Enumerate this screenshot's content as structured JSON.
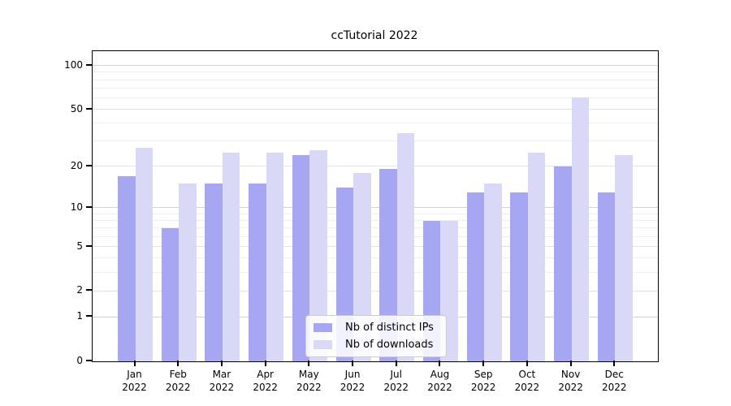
{
  "chart_data": {
    "type": "bar",
    "title": "ccTutorial 2022",
    "categories": [
      "Jan",
      "Feb",
      "Mar",
      "Apr",
      "May",
      "Jun",
      "Jul",
      "Aug",
      "Sep",
      "Oct",
      "Nov",
      "Dec"
    ],
    "category_year": "2022",
    "series": [
      {
        "name": "Nb of distinct IPs",
        "color": "#a6a6f3",
        "values": [
          17,
          7,
          15,
          15,
          24,
          14,
          19,
          8,
          13,
          13,
          20,
          13
        ]
      },
      {
        "name": "Nb of downloads",
        "color": "#d9d9f7",
        "values": [
          27,
          15,
          25,
          25,
          26,
          18,
          34,
          8,
          15,
          25,
          60,
          24
        ]
      }
    ],
    "y_axis": {
      "scale": "log1p",
      "tick_values": [
        0,
        1,
        2,
        5,
        10,
        20,
        50,
        100
      ],
      "tick_labels": [
        "0",
        "1",
        "2",
        "5",
        "10",
        "20",
        "50",
        "100"
      ],
      "major_gridlines": [
        1,
        10,
        100
      ],
      "mid_gridlines": [
        2,
        5,
        20,
        50
      ],
      "minor_gridlines": [
        3,
        4,
        6,
        7,
        8,
        9,
        30,
        40,
        60,
        70,
        80,
        90
      ],
      "ylim": [
        0,
        125
      ]
    },
    "xlabel": "",
    "ylabel": "",
    "grid": true,
    "legend_position": "lower center"
  },
  "colors": {
    "grid_major": "#d3d3d3",
    "grid_mid": "#e3e3e3",
    "grid_minor": "#efefef",
    "background": "#ffffff"
  }
}
